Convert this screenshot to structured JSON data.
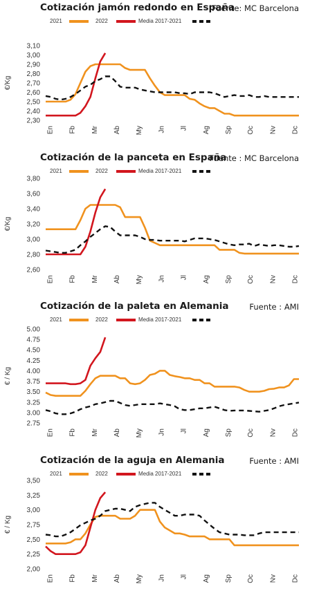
{
  "legend": {
    "s2021": "2021",
    "s2022": "2022",
    "sMedia": "Media 2017-2021"
  },
  "colors": {
    "2021": "#F0921E",
    "2022": "#D2161E",
    "media": "#111111"
  },
  "chart_data": [
    {
      "type": "line",
      "title": "Cotización jamón redondo en España",
      "source": "Fuente: MC Barcelona",
      "ylabel": "€/Kg",
      "yticks": [
        "2,30",
        "2,40",
        "2,50",
        "2,60",
        "2,70",
        "2,80",
        "2,90",
        "3,00",
        "3,10"
      ],
      "ylim": [
        2.3,
        3.1
      ],
      "xticks": [
        "En",
        "Fb",
        "Mr",
        "Ab",
        "My",
        "Jn",
        "Jl",
        "Ag",
        "Sp",
        "Oc",
        "Nv",
        "Dc"
      ],
      "weeks": 52,
      "series": [
        {
          "name": "2021",
          "x": [
            1,
            2,
            3,
            4,
            5,
            6,
            7,
            8,
            9,
            10,
            11,
            12,
            13,
            14,
            15,
            16,
            17,
            18,
            19,
            20,
            21,
            22,
            23,
            24,
            25,
            26,
            27,
            28,
            29,
            30,
            31,
            32,
            33,
            34,
            35,
            36,
            37,
            38,
            39,
            40,
            41,
            42,
            43,
            44,
            45,
            46,
            47,
            48,
            49,
            50,
            51,
            52
          ],
          "values": [
            2.5,
            2.5,
            2.5,
            2.5,
            2.5,
            2.52,
            2.58,
            2.7,
            2.82,
            2.88,
            2.9,
            2.9,
            2.9,
            2.9,
            2.9,
            2.9,
            2.86,
            2.84,
            2.84,
            2.84,
            2.84,
            2.75,
            2.67,
            2.6,
            2.57,
            2.57,
            2.57,
            2.57,
            2.57,
            2.53,
            2.52,
            2.48,
            2.45,
            2.43,
            2.43,
            2.4,
            2.37,
            2.37,
            2.35,
            2.35,
            2.35,
            2.35,
            2.35,
            2.35,
            2.35,
            2.35,
            2.35,
            2.35,
            2.35,
            2.35,
            2.35,
            2.35
          ]
        },
        {
          "name": "2022",
          "x": [
            1,
            2,
            3,
            4,
            5,
            6,
            7,
            8,
            9,
            10,
            11,
            12,
            13
          ],
          "values": [
            2.35,
            2.35,
            2.35,
            2.35,
            2.35,
            2.35,
            2.35,
            2.38,
            2.45,
            2.55,
            2.75,
            2.93,
            3.02
          ]
        },
        {
          "name": "Media 2017-2021",
          "x": [
            1,
            2,
            3,
            4,
            5,
            6,
            7,
            8,
            9,
            10,
            11,
            12,
            13,
            14,
            15,
            16,
            17,
            18,
            19,
            20,
            21,
            22,
            23,
            24,
            25,
            26,
            27,
            28,
            29,
            30,
            31,
            32,
            33,
            34,
            35,
            36,
            37,
            38,
            39,
            40,
            41,
            42,
            43,
            44,
            45,
            46,
            47,
            48,
            49,
            50,
            51,
            52
          ],
          "values": [
            2.56,
            2.55,
            2.53,
            2.52,
            2.53,
            2.55,
            2.58,
            2.62,
            2.66,
            2.68,
            2.72,
            2.74,
            2.77,
            2.77,
            2.72,
            2.66,
            2.65,
            2.65,
            2.65,
            2.63,
            2.62,
            2.61,
            2.6,
            2.6,
            2.6,
            2.6,
            2.6,
            2.59,
            2.59,
            2.58,
            2.6,
            2.6,
            2.6,
            2.6,
            2.59,
            2.57,
            2.55,
            2.56,
            2.57,
            2.56,
            2.56,
            2.57,
            2.55,
            2.55,
            2.56,
            2.55,
            2.55,
            2.55,
            2.55,
            2.55,
            2.55,
            2.55
          ]
        }
      ]
    },
    {
      "type": "line",
      "title": "Cotización de la panceta en España",
      "source": "Fuente : MC Barcelona",
      "ylabel": "€/Kg",
      "yticks": [
        "2,60",
        "2,80",
        "3,00",
        "3,20",
        "3,40",
        "3,60",
        "3,80"
      ],
      "ylim": [
        2.6,
        3.8
      ],
      "xticks": [
        "En",
        "Fb",
        "Mr",
        "Ab",
        "My",
        "Jn",
        "Jl",
        "Ag",
        "Sp",
        "Oc",
        "Nv",
        "Dc"
      ],
      "weeks": 52,
      "series": [
        {
          "name": "2021",
          "x": [
            1,
            2,
            3,
            4,
            5,
            6,
            7,
            8,
            9,
            10,
            11,
            12,
            13,
            14,
            15,
            16,
            17,
            18,
            19,
            20,
            21,
            22,
            23,
            24,
            25,
            26,
            27,
            28,
            29,
            30,
            31,
            32,
            33,
            34,
            35,
            36,
            37,
            38,
            39,
            40,
            41,
            42,
            43,
            44,
            45,
            46,
            47,
            48,
            49,
            50,
            51,
            52
          ],
          "values": [
            3.13,
            3.13,
            3.13,
            3.13,
            3.13,
            3.13,
            3.13,
            3.25,
            3.4,
            3.45,
            3.45,
            3.45,
            3.45,
            3.45,
            3.45,
            3.42,
            3.29,
            3.29,
            3.29,
            3.29,
            3.15,
            2.98,
            2.95,
            2.92,
            2.92,
            2.92,
            2.92,
            2.92,
            2.92,
            2.92,
            2.92,
            2.92,
            2.92,
            2.92,
            2.92,
            2.86,
            2.86,
            2.86,
            2.86,
            2.82,
            2.81,
            2.81,
            2.81,
            2.81,
            2.81,
            2.81,
            2.81,
            2.81,
            2.81,
            2.81,
            2.81,
            2.81
          ]
        },
        {
          "name": "2022",
          "x": [
            1,
            2,
            3,
            4,
            5,
            6,
            7,
            8,
            9,
            10,
            11,
            12,
            13
          ],
          "values": [
            2.8,
            2.8,
            2.8,
            2.8,
            2.8,
            2.8,
            2.8,
            2.8,
            2.9,
            3.1,
            3.35,
            3.55,
            3.66
          ]
        },
        {
          "name": "Media 2017-2021",
          "x": [
            1,
            2,
            3,
            4,
            5,
            6,
            7,
            8,
            9,
            10,
            11,
            12,
            13,
            14,
            15,
            16,
            17,
            18,
            19,
            20,
            21,
            22,
            23,
            24,
            25,
            26,
            27,
            28,
            29,
            30,
            31,
            32,
            33,
            34,
            35,
            36,
            37,
            38,
            39,
            40,
            41,
            42,
            43,
            44,
            45,
            46,
            47,
            48,
            49,
            50,
            51,
            52
          ],
          "values": [
            2.85,
            2.84,
            2.83,
            2.82,
            2.82,
            2.84,
            2.86,
            2.92,
            2.97,
            3.03,
            3.08,
            3.13,
            3.17,
            3.16,
            3.1,
            3.05,
            3.05,
            3.05,
            3.05,
            3.03,
            3.0,
            2.99,
            2.99,
            2.98,
            2.98,
            2.98,
            2.98,
            2.98,
            2.97,
            2.99,
            3.01,
            3.01,
            3.01,
            3.0,
            2.99,
            2.97,
            2.95,
            2.93,
            2.92,
            2.93,
            2.93,
            2.94,
            2.91,
            2.93,
            2.92,
            2.91,
            2.92,
            2.92,
            2.91,
            2.9,
            2.9,
            2.91
          ]
        }
      ]
    },
    {
      "type": "line",
      "title": "Cotización de la paleta en Alemania",
      "source": "Fuente : AMI",
      "ylabel": "€ / Kg",
      "yticks": [
        "2.75",
        "3.00",
        "3.25",
        "3.50",
        "3.75",
        "4.00",
        "4.25",
        "4.50",
        "4.75",
        "5.00"
      ],
      "ylim": [
        2.75,
        5.0
      ],
      "xticks": [
        "En",
        "Fb",
        "Mr",
        "Ab",
        "My",
        "Jn",
        "Jl",
        "Ag",
        "Sp",
        "Oc",
        "Nv",
        "Dc"
      ],
      "weeks": 52,
      "series": [
        {
          "name": "2021",
          "x": [
            1,
            2,
            3,
            4,
            5,
            6,
            7,
            8,
            9,
            10,
            11,
            12,
            13,
            14,
            15,
            16,
            17,
            18,
            19,
            20,
            21,
            22,
            23,
            24,
            25,
            26,
            27,
            28,
            29,
            30,
            31,
            32,
            33,
            34,
            35,
            36,
            37,
            38,
            39,
            40,
            41,
            42,
            43,
            44,
            45,
            46,
            47,
            48,
            49,
            50,
            51,
            52
          ],
          "values": [
            3.48,
            3.42,
            3.4,
            3.4,
            3.4,
            3.4,
            3.4,
            3.4,
            3.52,
            3.68,
            3.82,
            3.88,
            3.88,
            3.88,
            3.88,
            3.82,
            3.82,
            3.7,
            3.68,
            3.7,
            3.78,
            3.9,
            3.93,
            4.0,
            4.0,
            3.9,
            3.87,
            3.85,
            3.82,
            3.82,
            3.78,
            3.78,
            3.7,
            3.7,
            3.62,
            3.62,
            3.62,
            3.62,
            3.62,
            3.6,
            3.54,
            3.5,
            3.5,
            3.5,
            3.52,
            3.56,
            3.57,
            3.6,
            3.6,
            3.65,
            3.8,
            3.8
          ]
        },
        {
          "name": "2022",
          "x": [
            1,
            2,
            3,
            4,
            5,
            6,
            7,
            8,
            9,
            10,
            11,
            12,
            13
          ],
          "values": [
            3.7,
            3.7,
            3.7,
            3.7,
            3.7,
            3.68,
            3.68,
            3.7,
            3.78,
            4.12,
            4.3,
            4.45,
            4.8
          ]
        },
        {
          "name": "Media 2017-2021",
          "x": [
            1,
            2,
            3,
            4,
            5,
            6,
            7,
            8,
            9,
            10,
            11,
            12,
            13,
            14,
            15,
            16,
            17,
            18,
            19,
            20,
            21,
            22,
            23,
            24,
            25,
            26,
            27,
            28,
            29,
            30,
            31,
            32,
            33,
            34,
            35,
            36,
            37,
            38,
            39,
            40,
            41,
            42,
            43,
            44,
            45,
            46,
            47,
            48,
            49,
            50,
            51,
            52
          ],
          "values": [
            3.06,
            3.03,
            2.98,
            2.96,
            2.96,
            2.98,
            3.02,
            3.08,
            3.12,
            3.15,
            3.2,
            3.22,
            3.25,
            3.28,
            3.28,
            3.23,
            3.18,
            3.16,
            3.18,
            3.2,
            3.2,
            3.2,
            3.2,
            3.22,
            3.2,
            3.18,
            3.15,
            3.08,
            3.06,
            3.06,
            3.08,
            3.1,
            3.1,
            3.12,
            3.14,
            3.1,
            3.06,
            3.04,
            3.05,
            3.05,
            3.05,
            3.04,
            3.03,
            3.02,
            3.04,
            3.06,
            3.1,
            3.15,
            3.18,
            3.2,
            3.22,
            3.24
          ]
        }
      ]
    },
    {
      "type": "line",
      "title": "Cotización de la aguja en Alemania",
      "source": "Fuente : AMI",
      "ylabel": "€ / Kg",
      "yticks": [
        "2,00",
        "2,25",
        "2,50",
        "2,75",
        "3,00",
        "3,25",
        "3,50"
      ],
      "ylim": [
        2.0,
        3.5
      ],
      "xticks": [
        "En",
        "Fb",
        "Mr",
        "Ab",
        "My",
        "Jn",
        "Jl",
        "Ag",
        "Sp",
        "Oc",
        "Nv",
        "Dc"
      ],
      "weeks": 52,
      "series": [
        {
          "name": "2021",
          "x": [
            1,
            2,
            3,
            4,
            5,
            6,
            7,
            8,
            9,
            10,
            11,
            12,
            13,
            14,
            15,
            16,
            17,
            18,
            19,
            20,
            21,
            22,
            23,
            24,
            25,
            26,
            27,
            28,
            29,
            30,
            31,
            32,
            33,
            34,
            35,
            36,
            37,
            38,
            39,
            40,
            41,
            42,
            43,
            44,
            45,
            46,
            47,
            48,
            49,
            50,
            51,
            52
          ],
          "values": [
            2.43,
            2.43,
            2.43,
            2.43,
            2.43,
            2.45,
            2.5,
            2.5,
            2.6,
            2.75,
            2.88,
            2.9,
            2.9,
            2.9,
            2.9,
            2.85,
            2.85,
            2.85,
            2.9,
            3.0,
            3.0,
            3.0,
            3.0,
            2.8,
            2.7,
            2.65,
            2.6,
            2.6,
            2.58,
            2.55,
            2.55,
            2.55,
            2.55,
            2.5,
            2.5,
            2.5,
            2.5,
            2.5,
            2.4,
            2.4,
            2.4,
            2.4,
            2.4,
            2.4,
            2.4,
            2.4,
            2.4,
            2.4,
            2.4,
            2.4,
            2.4,
            2.4
          ]
        },
        {
          "name": "2022",
          "x": [
            1,
            2,
            3,
            4,
            5,
            6,
            7,
            8,
            9,
            10,
            11,
            12,
            13
          ],
          "values": [
            2.38,
            2.3,
            2.25,
            2.25,
            2.25,
            2.25,
            2.25,
            2.28,
            2.4,
            2.7,
            3.0,
            3.2,
            3.3
          ]
        },
        {
          "name": "Media 2017-2021",
          "x": [
            1,
            2,
            3,
            4,
            5,
            6,
            7,
            8,
            9,
            10,
            11,
            12,
            13,
            14,
            15,
            16,
            17,
            18,
            19,
            20,
            21,
            22,
            23,
            24,
            25,
            26,
            27,
            28,
            29,
            30,
            31,
            32,
            33,
            34,
            35,
            36,
            37,
            38,
            39,
            40,
            41,
            42,
            43,
            44,
            45,
            46,
            47,
            48,
            49,
            50,
            51,
            52
          ],
          "values": [
            2.58,
            2.57,
            2.55,
            2.55,
            2.58,
            2.62,
            2.68,
            2.74,
            2.78,
            2.82,
            2.85,
            2.9,
            2.98,
            3.0,
            3.02,
            3.02,
            3.0,
            2.98,
            3.05,
            3.08,
            3.1,
            3.12,
            3.12,
            3.05,
            3.0,
            2.95,
            2.9,
            2.9,
            2.92,
            2.92,
            2.92,
            2.9,
            2.82,
            2.75,
            2.68,
            2.62,
            2.6,
            2.58,
            2.58,
            2.58,
            2.57,
            2.57,
            2.57,
            2.6,
            2.62,
            2.62,
            2.62,
            2.62,
            2.62,
            2.62,
            2.62,
            2.62
          ]
        }
      ]
    }
  ]
}
